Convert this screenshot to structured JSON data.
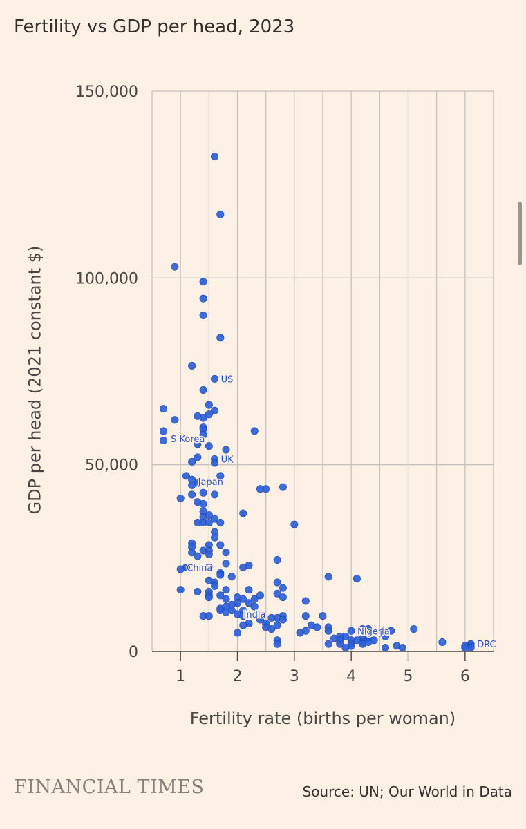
{
  "page": {
    "title": "Fertility vs GDP per head, 2023",
    "publisher": "FINANCIAL TIMES",
    "source": "Source: UN; Our World in Data"
  },
  "colors": {
    "background": "#fdf1e6",
    "grid": "#c7c1bb",
    "dot": "#2e5fd9",
    "dot_stroke": "#1f46b0",
    "label": "#2a52be",
    "text": "#33302e"
  },
  "chart_data": {
    "type": "scatter",
    "title": "Fertility vs GDP per head, 2023",
    "xlabel": "Fertility rate (births per woman)",
    "ylabel": "GDP per head (2021 constant $)",
    "xlim": [
      0.5,
      6.5
    ],
    "ylim": [
      0,
      150000
    ],
    "xticks": [
      1,
      2,
      3,
      4,
      5,
      6
    ],
    "yticks": [
      0,
      50000,
      100000,
      150000
    ],
    "xtick_labels": [
      "1",
      "2",
      "3",
      "4",
      "5",
      "6"
    ],
    "ytick_labels": [
      "0",
      "50,000",
      "100,000",
      "150,000"
    ],
    "grid": true,
    "labels": [
      {
        "text": "US",
        "x": 1.6,
        "y": 73000
      },
      {
        "text": "S Korea",
        "x": 0.72,
        "y": 57000
      },
      {
        "text": "UK",
        "x": 1.6,
        "y": 51500
      },
      {
        "text": "Japan",
        "x": 1.2,
        "y": 45500
      },
      {
        "text": "China",
        "x": 1.0,
        "y": 22500
      },
      {
        "text": "India",
        "x": 2.0,
        "y": 10000
      },
      {
        "text": "Nigeria",
        "x": 4.0,
        "y": 5500
      },
      {
        "text": "DRC",
        "x": 6.1,
        "y": 2000
      }
    ],
    "points": [
      [
        1.6,
        132500
      ],
      [
        1.7,
        117000
      ],
      [
        0.9,
        103000
      ],
      [
        1.4,
        99000
      ],
      [
        1.4,
        94500
      ],
      [
        1.4,
        90000
      ],
      [
        1.7,
        84000
      ],
      [
        1.2,
        76500
      ],
      [
        1.6,
        73000
      ],
      [
        1.4,
        70000
      ],
      [
        1.5,
        66000
      ],
      [
        0.7,
        65000
      ],
      [
        1.6,
        64500
      ],
      [
        1.5,
        63500
      ],
      [
        1.3,
        63000
      ],
      [
        0.9,
        62000
      ],
      [
        1.4,
        62500
      ],
      [
        1.4,
        60000
      ],
      [
        1.4,
        59500
      ],
      [
        2.3,
        59000
      ],
      [
        0.7,
        59000
      ],
      [
        1.4,
        58000
      ],
      [
        0.7,
        56500
      ],
      [
        1.3,
        55500
      ],
      [
        1.5,
        55000
      ],
      [
        1.8,
        54000
      ],
      [
        1.3,
        52000
      ],
      [
        1.6,
        51500
      ],
      [
        1.2,
        50800
      ],
      [
        1.6,
        50500
      ],
      [
        1.7,
        47000
      ],
      [
        1.1,
        47000
      ],
      [
        1.2,
        46000
      ],
      [
        1.3,
        45000
      ],
      [
        1.2,
        44500
      ],
      [
        2.8,
        44000
      ],
      [
        2.5,
        43500
      ],
      [
        2.4,
        43500
      ],
      [
        1.4,
        42500
      ],
      [
        1.2,
        42000
      ],
      [
        1.6,
        42000
      ],
      [
        1.0,
        41000
      ],
      [
        1.3,
        40000
      ],
      [
        1.4,
        39500
      ],
      [
        1.4,
        37500
      ],
      [
        1.5,
        36500
      ],
      [
        2.1,
        37000
      ],
      [
        1.4,
        36000
      ],
      [
        1.6,
        35500
      ],
      [
        1.3,
        34500
      ],
      [
        1.4,
        34500
      ],
      [
        1.5,
        34500
      ],
      [
        1.7,
        34500
      ],
      [
        3.0,
        34000
      ],
      [
        1.6,
        32000
      ],
      [
        1.6,
        30500
      ],
      [
        1.2,
        29000
      ],
      [
        1.2,
        28000
      ],
      [
        1.7,
        28500
      ],
      [
        1.5,
        28500
      ],
      [
        1.4,
        27000
      ],
      [
        1.2,
        26500
      ],
      [
        1.5,
        27000
      ],
      [
        1.8,
        26500
      ],
      [
        1.3,
        25500
      ],
      [
        1.5,
        26000
      ],
      [
        2.7,
        24500
      ],
      [
        1.8,
        23500
      ],
      [
        2.2,
        23000
      ],
      [
        2.1,
        22500
      ],
      [
        1.1,
        22500
      ],
      [
        1.5,
        22500
      ],
      [
        1.0,
        22000
      ],
      [
        1.7,
        21000
      ],
      [
        1.7,
        20500
      ],
      [
        1.9,
        20000
      ],
      [
        3.6,
        20000
      ],
      [
        4.1,
        19500
      ],
      [
        1.5,
        19000
      ],
      [
        1.6,
        18500
      ],
      [
        2.7,
        18500
      ],
      [
        1.6,
        17500
      ],
      [
        2.8,
        17000
      ],
      [
        1.0,
        16500
      ],
      [
        1.3,
        16000
      ],
      [
        1.8,
        16500
      ],
      [
        2.2,
        16500
      ],
      [
        1.5,
        16000
      ],
      [
        1.5,
        15000
      ],
      [
        2.7,
        15500
      ],
      [
        1.7,
        15000
      ],
      [
        2.4,
        15000
      ],
      [
        2.0,
        14500
      ],
      [
        2.8,
        14500
      ],
      [
        1.5,
        14500
      ],
      [
        1.8,
        14000
      ],
      [
        2.1,
        14000
      ],
      [
        2.3,
        14000
      ],
      [
        3.2,
        13500
      ],
      [
        2.0,
        13000
      ],
      [
        1.9,
        12500
      ],
      [
        2.2,
        13000
      ],
      [
        2.3,
        12000
      ],
      [
        1.8,
        12000
      ],
      [
        1.7,
        11500
      ],
      [
        1.9,
        11000
      ],
      [
        1.7,
        11000
      ],
      [
        2.1,
        11000
      ],
      [
        1.8,
        10500
      ],
      [
        2.0,
        10000
      ],
      [
        1.4,
        9500
      ],
      [
        1.5,
        9500
      ],
      [
        2.1,
        9500
      ],
      [
        2.8,
        9500
      ],
      [
        3.2,
        9500
      ],
      [
        3.5,
        9500
      ],
      [
        2.7,
        9000
      ],
      [
        2.6,
        9000
      ],
      [
        2.4,
        8500
      ],
      [
        2.8,
        8500
      ],
      [
        2.2,
        7500
      ],
      [
        2.5,
        7500
      ],
      [
        2.1,
        7000
      ],
      [
        2.7,
        7000
      ],
      [
        3.3,
        7000
      ],
      [
        2.5,
        6500
      ],
      [
        2.6,
        6000
      ],
      [
        3.6,
        6500
      ],
      [
        3.4,
        6500
      ],
      [
        4.2,
        6000
      ],
      [
        3.2,
        5500
      ],
      [
        4.3,
        6000
      ],
      [
        4.0,
        5500
      ],
      [
        5.1,
        6000
      ],
      [
        4.7,
        5500
      ],
      [
        3.6,
        5500
      ],
      [
        3.1,
        5000
      ],
      [
        4.5,
        5000
      ],
      [
        2.0,
        5000
      ],
      [
        4.6,
        4000
      ],
      [
        3.9,
        4000
      ],
      [
        3.8,
        4000
      ],
      [
        4.2,
        3500
      ],
      [
        4.3,
        3500
      ],
      [
        3.7,
        3500
      ],
      [
        3.8,
        3000
      ],
      [
        4.1,
        3000
      ],
      [
        4.0,
        3000
      ],
      [
        4.4,
        3000
      ],
      [
        4.2,
        2500
      ],
      [
        4.3,
        2500
      ],
      [
        2.7,
        3000
      ],
      [
        2.7,
        2000
      ],
      [
        3.8,
        2000
      ],
      [
        3.6,
        2000
      ],
      [
        4.0,
        2000
      ],
      [
        4.0,
        1500
      ],
      [
        4.2,
        2000
      ],
      [
        4.8,
        1500
      ],
      [
        4.9,
        1000
      ],
      [
        4.6,
        1000
      ],
      [
        3.9,
        1000
      ],
      [
        5.6,
        2500
      ],
      [
        6.1,
        2000
      ],
      [
        6.1,
        1500
      ],
      [
        6.0,
        1500
      ],
      [
        6.1,
        1000
      ],
      [
        6.0,
        1000
      ]
    ]
  }
}
